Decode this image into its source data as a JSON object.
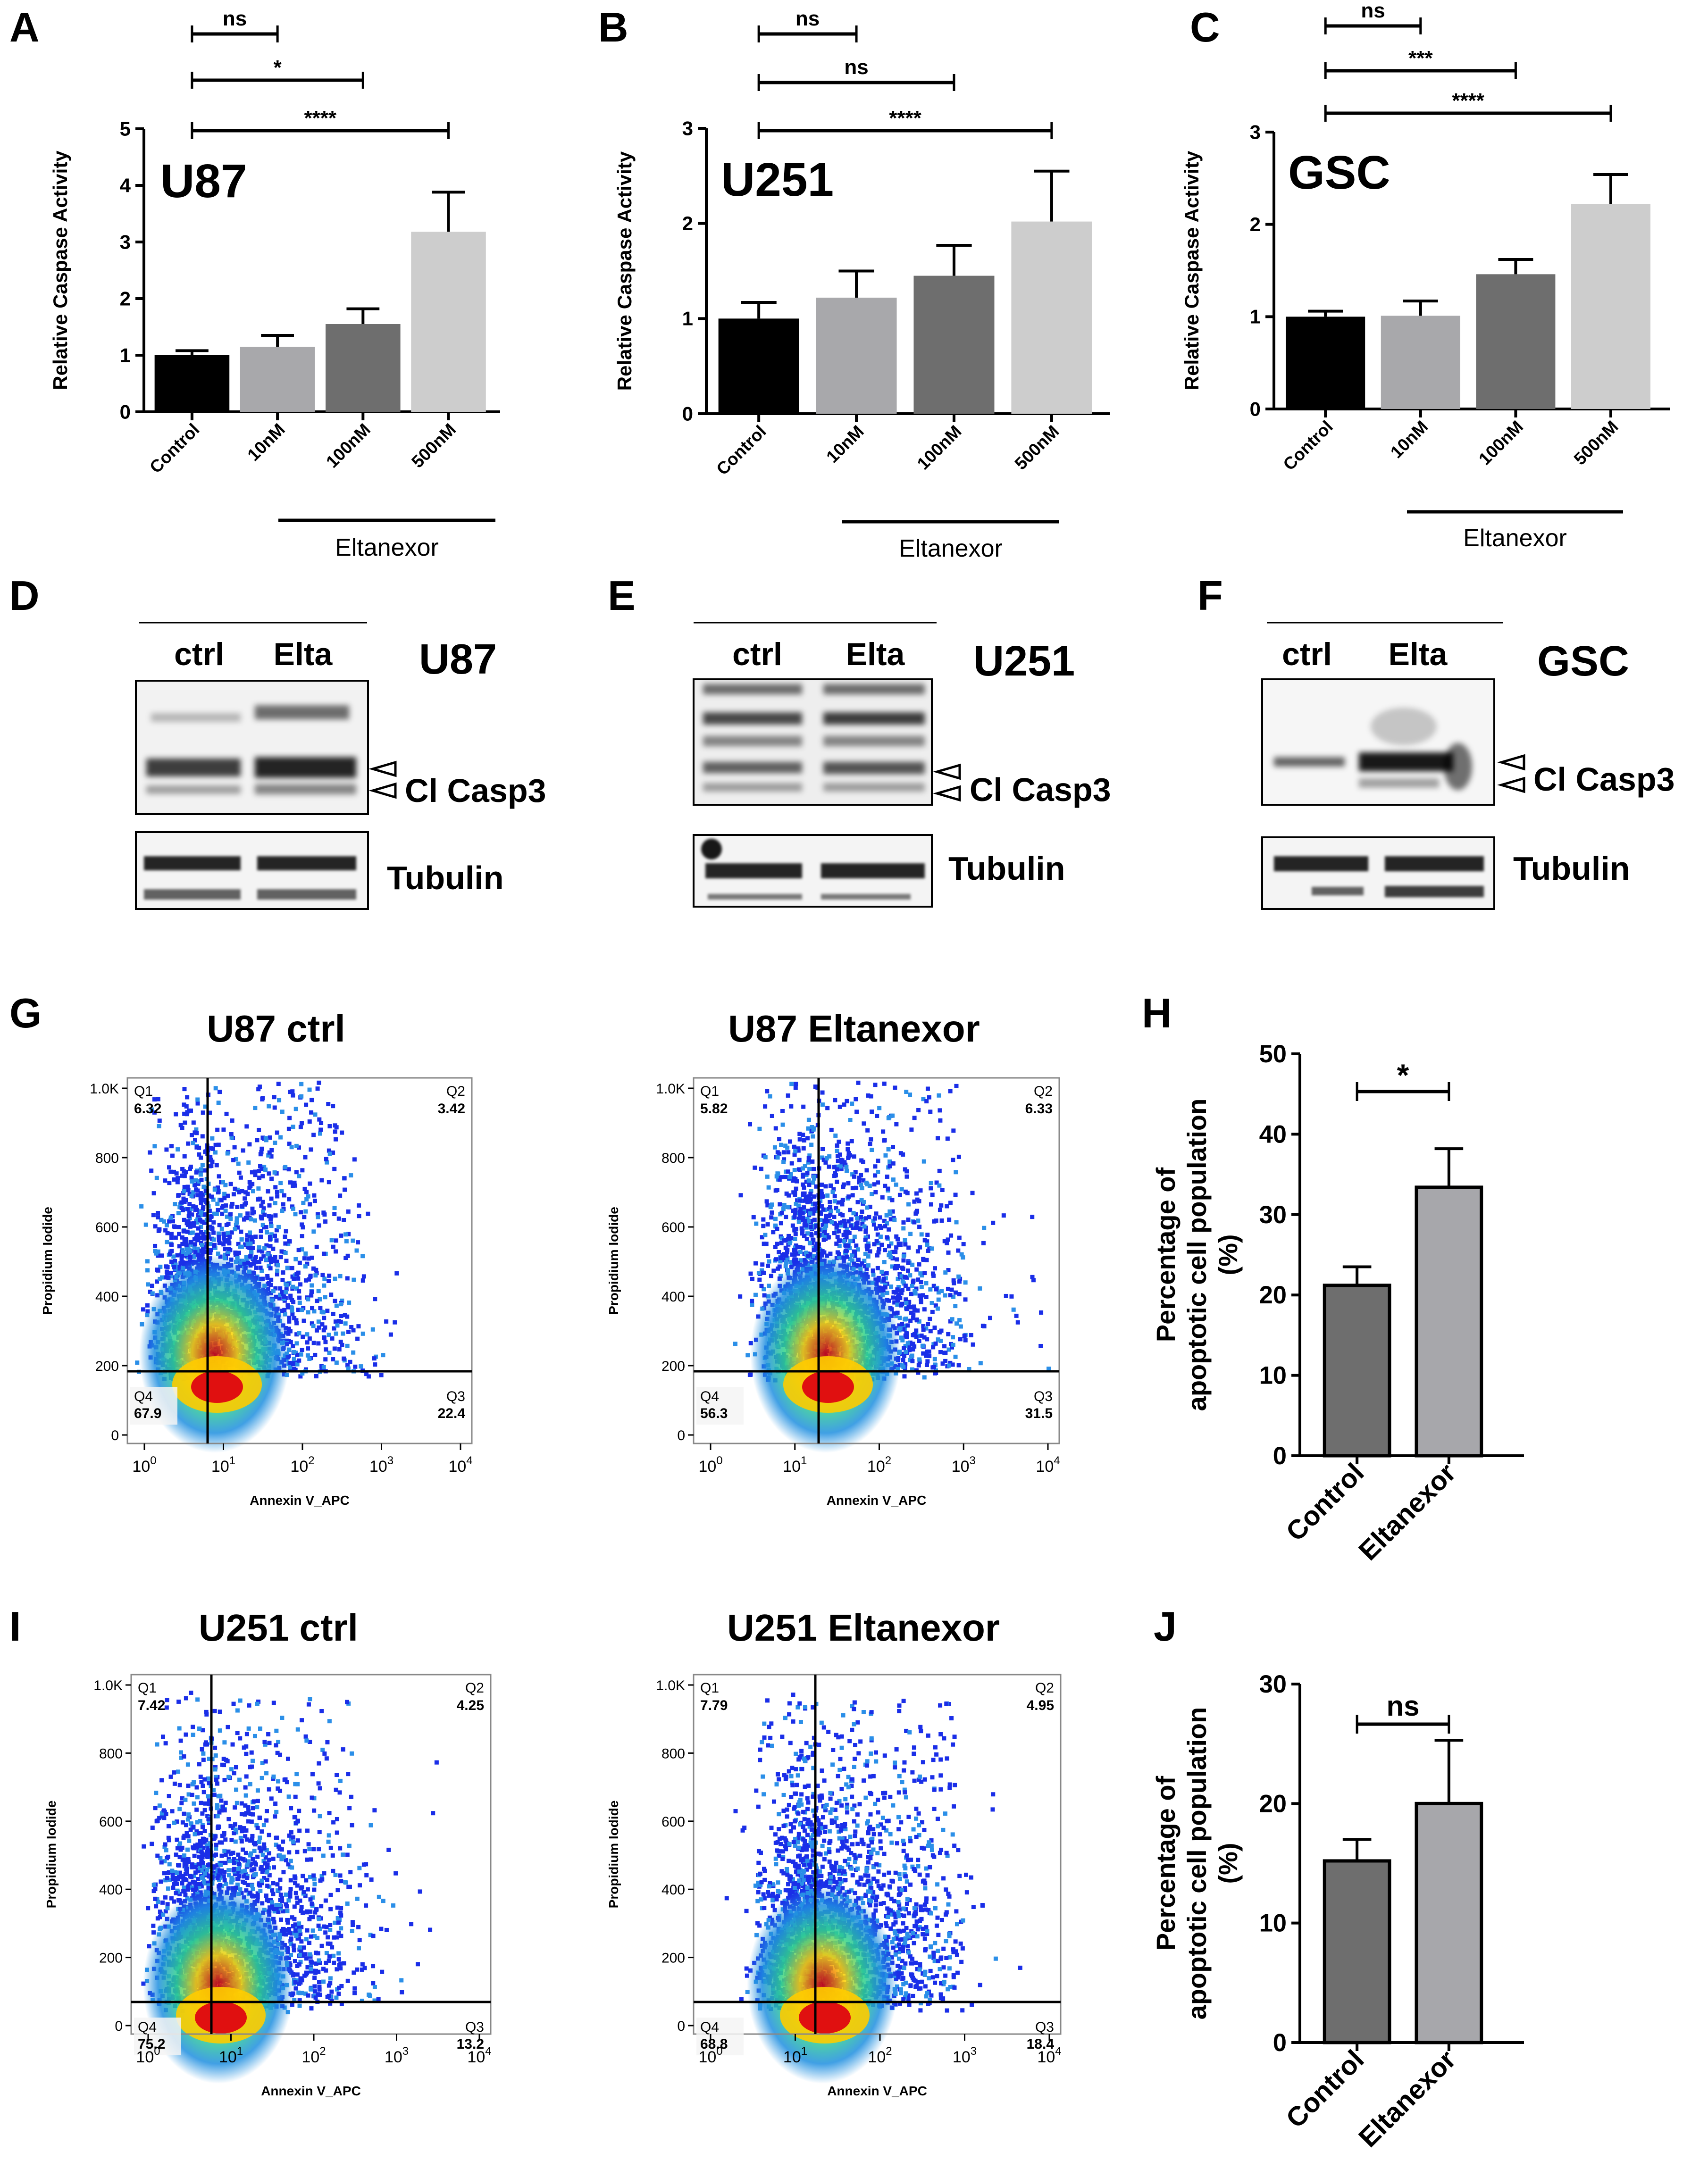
{
  "figure": {
    "panels": {
      "A": {
        "letter": "A",
        "cell": "U87"
      },
      "B": {
        "letter": "B",
        "cell": "U251"
      },
      "C": {
        "letter": "C",
        "cell": "GSC"
      },
      "D": {
        "letter": "D"
      },
      "E": {
        "letter": "E"
      },
      "F": {
        "letter": "F"
      },
      "G": {
        "letter": "G"
      },
      "H": {
        "letter": "H"
      },
      "I": {
        "letter": "I"
      },
      "J": {
        "letter": "J"
      }
    },
    "caspase_ylabel": "Relative Caspase Activity",
    "caspase_categories": [
      "Control",
      "10nM",
      "100nM",
      "500nM"
    ],
    "treatment_label": "Eltanexor",
    "western": {
      "lane_labels": [
        "ctrl",
        "Elta"
      ],
      "target_label": "Cl Casp3",
      "loading_label": "Tubulin",
      "cells": [
        "U87",
        "U251",
        "GSC"
      ]
    },
    "flow": {
      "xlabel": "Annexin V_APC",
      "ylabel": "Propidium Iodide",
      "y_ticks": [
        "0",
        "200",
        "400",
        "600",
        "800",
        "1.0K"
      ],
      "x_ticks": [
        {
          "base": "10",
          "exp": "0"
        },
        {
          "base": "10",
          "exp": "1"
        },
        {
          "base": "10",
          "exp": "2"
        },
        {
          "base": "10",
          "exp": "3"
        },
        {
          "base": "10",
          "exp": "4"
        }
      ],
      "quadrant_names": [
        "Q1",
        "Q2",
        "Q3",
        "Q4"
      ],
      "plots": [
        {
          "title": "U87 ctrl",
          "q1": "6.32",
          "q2": "3.42",
          "q3": "22.4",
          "q4": "67.9"
        },
        {
          "title": "U87 Eltanexor",
          "q1": "5.82",
          "q2": "6.33",
          "q3": "31.5",
          "q4": "56.3"
        },
        {
          "title": "U251 ctrl",
          "q1": "7.42",
          "q2": "4.25",
          "q3": "13.2",
          "q4": "75.2"
        },
        {
          "title": "U251 Eltanexor",
          "q1": "7.79",
          "q2": "4.95",
          "q3": "18.4",
          "q4": "68.8"
        }
      ]
    },
    "apoptosis_ylabel_line1": "Percentage of",
    "apoptosis_ylabel_line2": "apoptotic cell population",
    "apoptosis_ylabel_line3": "(%)"
  },
  "chart_data": [
    {
      "panel": "A",
      "type": "bar",
      "title": "U87",
      "categories": [
        "Control",
        "10nM",
        "100nM",
        "500nM"
      ],
      "values": [
        1.0,
        1.15,
        1.55,
        3.18
      ],
      "errors": [
        0.08,
        0.2,
        0.27,
        0.7
      ],
      "colors": [
        "#000000",
        "#a8a8ab",
        "#6e6e6e",
        "#cdcdcd"
      ],
      "ylabel": "Relative Caspase Activity",
      "ylim": [
        0,
        5
      ],
      "yticks": [
        0,
        1,
        2,
        3,
        4,
        5
      ],
      "significance": [
        {
          "from": 0,
          "to": 1,
          "label": "ns"
        },
        {
          "from": 0,
          "to": 2,
          "label": "*"
        },
        {
          "from": 0,
          "to": 3,
          "label": "****"
        }
      ]
    },
    {
      "panel": "B",
      "type": "bar",
      "title": "U251",
      "categories": [
        "Control",
        "10nM",
        "100nM",
        "500nM"
      ],
      "values": [
        1.0,
        1.22,
        1.45,
        2.02
      ],
      "errors": [
        0.17,
        0.28,
        0.32,
        0.53
      ],
      "colors": [
        "#000000",
        "#a8a8ab",
        "#6e6e6e",
        "#cdcdcd"
      ],
      "ylabel": "Relative Caspase Activity",
      "ylim": [
        0,
        3
      ],
      "yticks": [
        0,
        1,
        2,
        3
      ],
      "significance": [
        {
          "from": 0,
          "to": 1,
          "label": "ns"
        },
        {
          "from": 0,
          "to": 2,
          "label": "ns"
        },
        {
          "from": 0,
          "to": 3,
          "label": "****"
        }
      ]
    },
    {
      "panel": "C",
      "type": "bar",
      "title": "GSC",
      "categories": [
        "Control",
        "10nM",
        "100nM",
        "500nM"
      ],
      "values": [
        1.0,
        1.01,
        1.46,
        2.22
      ],
      "errors": [
        0.06,
        0.16,
        0.16,
        0.32
      ],
      "colors": [
        "#000000",
        "#a8a8ab",
        "#6e6e6e",
        "#cdcdcd"
      ],
      "ylabel": "Relative Caspase Activity",
      "ylim": [
        0,
        3
      ],
      "yticks": [
        0,
        1,
        2,
        3
      ],
      "significance": [
        {
          "from": 0,
          "to": 1,
          "label": "ns"
        },
        {
          "from": 0,
          "to": 2,
          "label": "***"
        },
        {
          "from": 0,
          "to": 3,
          "label": "****"
        }
      ]
    },
    {
      "panel": "H",
      "type": "bar",
      "categories": [
        "Control",
        "Eltanexor"
      ],
      "values": [
        21.2,
        33.4
      ],
      "errors": [
        2.3,
        4.8
      ],
      "colors": [
        "#6e6e6e",
        "#a7a7ab"
      ],
      "ylabel": "Percentage of apoptotic cell population (%)",
      "ylim": [
        0,
        50
      ],
      "yticks": [
        0,
        10,
        20,
        30,
        40,
        50
      ],
      "significance": [
        {
          "from": 0,
          "to": 1,
          "label": "*"
        }
      ]
    },
    {
      "panel": "J",
      "type": "bar",
      "categories": [
        "Control",
        "Eltanexor"
      ],
      "values": [
        15.2,
        20.0
      ],
      "errors": [
        1.8,
        5.3
      ],
      "colors": [
        "#6e6e6e",
        "#a7a7ab"
      ],
      "ylabel": "Percentage of apoptotic cell population (%)",
      "ylim": [
        0,
        30
      ],
      "yticks": [
        0,
        10,
        20,
        30
      ],
      "significance": [
        {
          "from": 0,
          "to": 1,
          "label": "ns"
        }
      ]
    }
  ]
}
